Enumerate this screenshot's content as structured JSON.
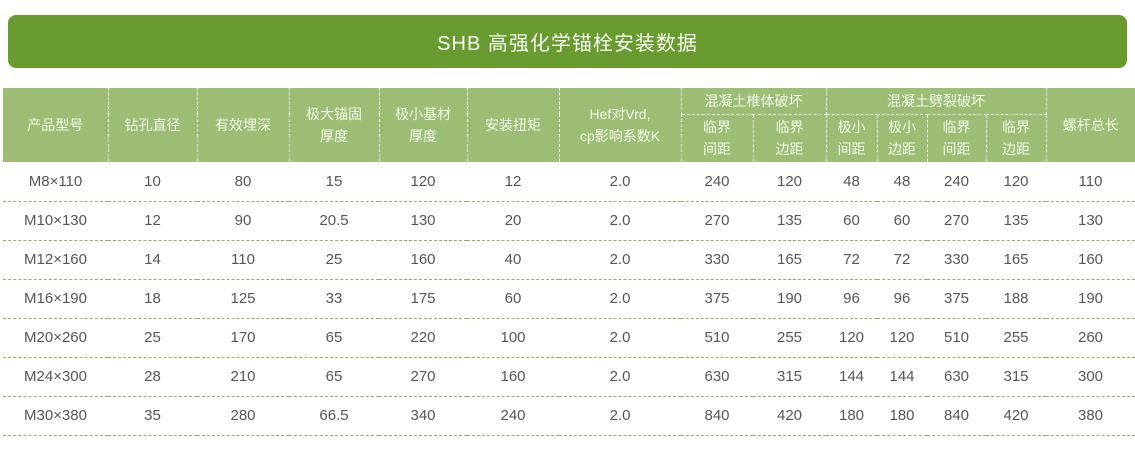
{
  "title": "SHB 高强化学锚栓安装数据",
  "colors": {
    "title_bar_bg": "#6A9B30",
    "title_text": "#F6F9F0",
    "header_bg": "#9CBD73",
    "header_text": "#F2F6EA",
    "row_divider": "#97B05E",
    "cell_text": "#56565A"
  },
  "table": {
    "headers": {
      "product": "产品型号",
      "drill_diameter": "钻孔直径",
      "effective_depth": "有效埋深",
      "max_anchor_thickness": "极大锚固\n厚度",
      "min_base_thickness": "极小基材\n厚度",
      "install_torque": "安装扭矩",
      "hef_k": "Hef对Vrd,\ncp影响系数K",
      "cone_group": "混凝土椎体破坏",
      "split_group": "混凝土劈裂破坏",
      "cone_sub": [
        "临界\n间距",
        "临界\n边距"
      ],
      "split_sub": [
        "极小\n间距",
        "极小\n边距",
        "临界\n间距",
        "临界\n边距"
      ],
      "screw_length": "螺杆总长"
    }
  },
  "chart_data": {
    "type": "table",
    "title": "SHB 高强化学锚栓安装数据",
    "columns": [
      "产品型号",
      "钻孔直径",
      "有效埋深",
      "极大锚固厚度",
      "极小基材厚度",
      "安装扭矩",
      "Hef对Vrd,cp影响系数K",
      "混凝土椎体破坏-临界间距",
      "混凝土椎体破坏-临界边距",
      "混凝土劈裂破坏-极小间距",
      "混凝土劈裂破坏-极小边距",
      "混凝土劈裂破坏-临界间距",
      "混凝土劈裂破坏-临界边距",
      "螺杆总长"
    ],
    "rows": [
      [
        "M8×110",
        "10",
        "80",
        "15",
        "120",
        "12",
        "2.0",
        "240",
        "120",
        "48",
        "48",
        "240",
        "120",
        "110"
      ],
      [
        "M10×130",
        "12",
        "90",
        "20.5",
        "130",
        "20",
        "2.0",
        "270",
        "135",
        "60",
        "60",
        "270",
        "135",
        "130"
      ],
      [
        "M12×160",
        "14",
        "110",
        "25",
        "160",
        "40",
        "2.0",
        "330",
        "165",
        "72",
        "72",
        "330",
        "165",
        "160"
      ],
      [
        "M16×190",
        "18",
        "125",
        "33",
        "175",
        "60",
        "2.0",
        "375",
        "190",
        "96",
        "96",
        "375",
        "188",
        "190"
      ],
      [
        "M20×260",
        "25",
        "170",
        "65",
        "220",
        "100",
        "2.0",
        "510",
        "255",
        "120",
        "120",
        "510",
        "255",
        "260"
      ],
      [
        "M24×300",
        "28",
        "210",
        "65",
        "270",
        "160",
        "2.0",
        "630",
        "315",
        "144",
        "144",
        "630",
        "315",
        "300"
      ],
      [
        "M30×380",
        "35",
        "280",
        "66.5",
        "340",
        "240",
        "2.0",
        "840",
        "420",
        "180",
        "180",
        "840",
        "420",
        "380"
      ]
    ]
  }
}
